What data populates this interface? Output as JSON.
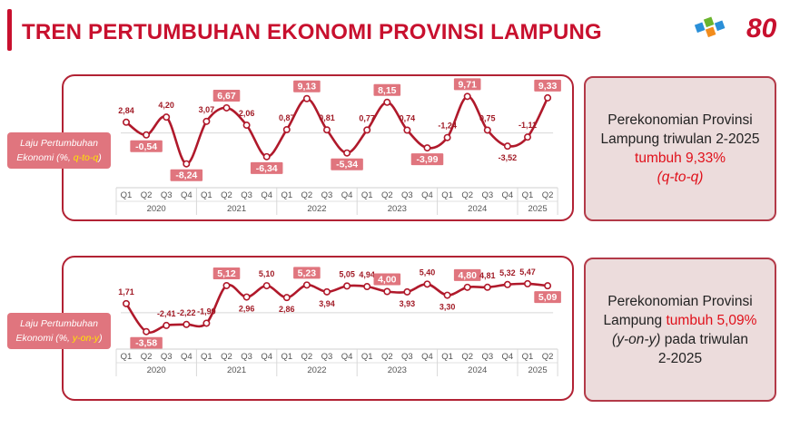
{
  "page": {
    "title": "TREN PERTUMBUHAN EKONOMI PROVINSI LAMPUNG",
    "logo_text": "80"
  },
  "colors": {
    "brand": "#c8102e",
    "line": "#b0192b",
    "label_box": "#e0757e",
    "highlight": "#ffe600",
    "info_bg": "#ecdcdc"
  },
  "quarters": [
    "Q1",
    "Q2",
    "Q3",
    "Q4",
    "Q1",
    "Q2",
    "Q3",
    "Q4",
    "Q1",
    "Q2",
    "Q3",
    "Q4",
    "Q1",
    "Q2",
    "Q3",
    "Q4",
    "Q1",
    "Q2",
    "Q3",
    "Q4",
    "Q1",
    "Q2"
  ],
  "years": [
    "2020",
    "2021",
    "2022",
    "2023",
    "2024",
    "2025"
  ],
  "qtoq": {
    "side_label_line1": "Laju Pertumbuhan",
    "side_label_line2a": "Ekonomi (%, ",
    "side_label_line2b": "q-to-q",
    "side_label_line2c": ")",
    "info_line1": "Perekonomian Provinsi",
    "info_line2": "Lampung triwulan 2-2025",
    "info_line3": "tumbuh 9,33%",
    "info_line4": "(q-to-q)"
  },
  "yony": {
    "side_label_line1": "Laju Pertumbuhan",
    "side_label_line2a": "Ekonomi (%, ",
    "side_label_line2b": "y-on-y",
    "side_label_line2c": ")",
    "info_line1": "Perekonomian Provinsi",
    "info_line2a": "Lampung ",
    "info_line2b": "tumbuh 5,09%",
    "info_line3a": "(y-on-y)",
    "info_line3b": " pada triwulan",
    "info_line4": "2-2025"
  },
  "chart_data": [
    {
      "type": "line",
      "name": "q-to-q",
      "categories": [
        "2020 Q1",
        "2020 Q2",
        "2020 Q3",
        "2020 Q4",
        "2021 Q1",
        "2021 Q2",
        "2021 Q3",
        "2021 Q4",
        "2022 Q1",
        "2022 Q2",
        "2022 Q3",
        "2022 Q4",
        "2023 Q1",
        "2023 Q2",
        "2023 Q3",
        "2023 Q4",
        "2024 Q1",
        "2024 Q2",
        "2024 Q3",
        "2024 Q4",
        "2025 Q1",
        "2025 Q2"
      ],
      "values": [
        2.84,
        -0.54,
        4.2,
        -8.24,
        3.07,
        6.67,
        2.06,
        -6.34,
        0.87,
        9.13,
        0.81,
        -5.34,
        0.77,
        8.15,
        0.74,
        -3.99,
        -1.24,
        9.71,
        0.75,
        -3.52,
        -1.11,
        9.33
      ],
      "labels": [
        "2,84",
        "-0,54",
        "4,20",
        "-8,24",
        "3,07",
        "6,67",
        "2,06",
        "-6,34",
        "0,87",
        "9,13",
        "0,81",
        "-5,34",
        "0,77",
        "8,15",
        "0,74",
        "-3,99",
        "-1,24",
        "9,71",
        "0,75",
        "-3,52",
        "-1,11",
        "9,33"
      ],
      "boxed": [
        1,
        3,
        5,
        7,
        9,
        11,
        13,
        15,
        17,
        21
      ],
      "ylim": [
        -10,
        11
      ]
    },
    {
      "type": "line",
      "name": "y-on-y",
      "categories": [
        "2020 Q1",
        "2020 Q2",
        "2020 Q3",
        "2020 Q4",
        "2021 Q1",
        "2021 Q2",
        "2021 Q3",
        "2021 Q4",
        "2022 Q1",
        "2022 Q2",
        "2022 Q3",
        "2022 Q4",
        "2023 Q1",
        "2023 Q2",
        "2023 Q3",
        "2023 Q4",
        "2024 Q1",
        "2024 Q2",
        "2024 Q3",
        "2024 Q4",
        "2025 Q1",
        "2025 Q2"
      ],
      "values": [
        1.71,
        -3.58,
        -2.41,
        -2.22,
        -1.99,
        5.12,
        2.96,
        5.1,
        2.86,
        5.23,
        3.94,
        5.05,
        4.94,
        4.0,
        3.93,
        5.4,
        3.3,
        4.8,
        4.81,
        5.32,
        5.47,
        5.09
      ],
      "labels": [
        "1,71",
        "-3,58",
        "-2,41",
        "-2,22",
        "-1,99",
        "5,12",
        "2,96",
        "5,10",
        "2,86",
        "5,23",
        "3,94",
        "5,05",
        "4,94",
        "4,00",
        "3,93",
        "5,40",
        "3,30",
        "4,80",
        "4,81",
        "5,32",
        "5,47",
        "5,09"
      ],
      "boxed": [
        1,
        5,
        9,
        13,
        17,
        21
      ],
      "ylim": [
        -5,
        7
      ]
    }
  ]
}
